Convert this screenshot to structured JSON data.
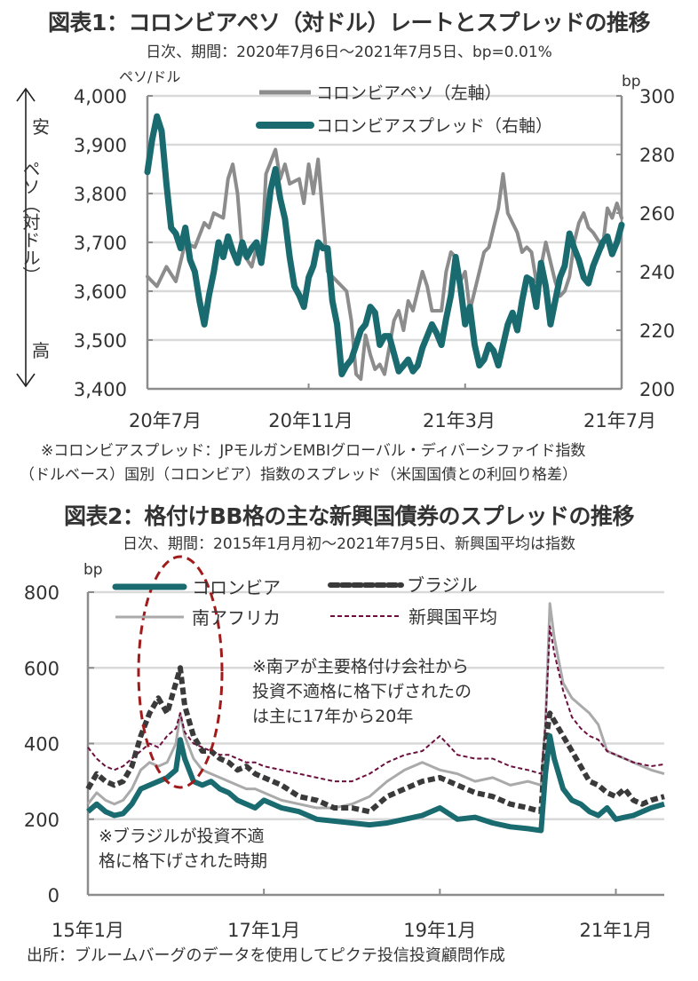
{
  "chart_data": [
    {
      "type": "line",
      "title": "図表1：コロンビアペソ（対ドル）レートとスプレッドの推移",
      "subtitle": "日次、期間：2020年7月6日～2021年7月5日、bp=0.01%",
      "ylabel_left": "ペソ/ドル",
      "ylabel_right": "bp",
      "side_label_top": "安",
      "side_label_mid": "ペソ（対ドル）",
      "side_label_bottom": "高",
      "ylim_left": [
        3400,
        4000
      ],
      "ylim_right": [
        200,
        300
      ],
      "yticks_left": [
        "4,000",
        "3,900",
        "3,800",
        "3,700",
        "3,600",
        "3,500",
        "3,400"
      ],
      "yticks_right": [
        "300",
        "280",
        "260",
        "240",
        "220",
        "200"
      ],
      "xticks": [
        "20年7月",
        "20年11月",
        "21年3月",
        "21年7月"
      ],
      "grid": true,
      "legend_placement": "top-center",
      "x_range": [
        "2020-07-06",
        "2021-07-05"
      ],
      "series": [
        {
          "name": "コロンビアペソ（左軸）",
          "axis": "left",
          "color": "#8c8c8c",
          "x": [
            0,
            0.02,
            0.04,
            0.06,
            0.08,
            0.1,
            0.12,
            0.13,
            0.14,
            0.16,
            0.17,
            0.18,
            0.19,
            0.2,
            0.22,
            0.23,
            0.24,
            0.25,
            0.27,
            0.28,
            0.29,
            0.3,
            0.32,
            0.33,
            0.34,
            0.35,
            0.36,
            0.38,
            0.39,
            0.4,
            0.42,
            0.43,
            0.44,
            0.45,
            0.46,
            0.47,
            0.48,
            0.49,
            0.5,
            0.52,
            0.53,
            0.54,
            0.55,
            0.56,
            0.58,
            0.59,
            0.6,
            0.62,
            0.63,
            0.64,
            0.65,
            0.66,
            0.67,
            0.68,
            0.7,
            0.71,
            0.72,
            0.73,
            0.74,
            0.75,
            0.76,
            0.78,
            0.79,
            0.8,
            0.81,
            0.82,
            0.83,
            0.84,
            0.86,
            0.87,
            0.88,
            0.89,
            0.9,
            0.91,
            0.92,
            0.93,
            0.94,
            0.96,
            0.97,
            0.98,
            0.99,
            1.0
          ],
          "values": [
            3630,
            3610,
            3650,
            3620,
            3700,
            3690,
            3740,
            3730,
            3760,
            3750,
            3830,
            3860,
            3800,
            3680,
            3650,
            3690,
            3660,
            3840,
            3890,
            3830,
            3860,
            3820,
            3830,
            3780,
            3860,
            3800,
            3870,
            3640,
            3630,
            3620,
            3600,
            3540,
            3430,
            3420,
            3510,
            3470,
            3440,
            3450,
            3430,
            3540,
            3560,
            3520,
            3580,
            3560,
            3640,
            3610,
            3560,
            3560,
            3640,
            3680,
            3670,
            3620,
            3640,
            3560,
            3640,
            3680,
            3690,
            3730,
            3770,
            3840,
            3760,
            3720,
            3680,
            3690,
            3680,
            3620,
            3650,
            3700,
            3620,
            3590,
            3600,
            3630,
            3700,
            3740,
            3760,
            3730,
            3720,
            3690,
            3770,
            3750,
            3780,
            3750
          ]
        },
        {
          "name": "コロンビアスプレッド（右軸）",
          "axis": "right",
          "color": "#1a6b70",
          "x": [
            0,
            0.01,
            0.02,
            0.03,
            0.04,
            0.05,
            0.06,
            0.07,
            0.08,
            0.09,
            0.1,
            0.11,
            0.12,
            0.13,
            0.14,
            0.15,
            0.16,
            0.17,
            0.18,
            0.19,
            0.2,
            0.21,
            0.22,
            0.23,
            0.24,
            0.25,
            0.26,
            0.27,
            0.28,
            0.29,
            0.3,
            0.31,
            0.32,
            0.33,
            0.34,
            0.35,
            0.36,
            0.37,
            0.38,
            0.39,
            0.4,
            0.41,
            0.42,
            0.43,
            0.44,
            0.45,
            0.46,
            0.47,
            0.48,
            0.49,
            0.5,
            0.51,
            0.52,
            0.53,
            0.54,
            0.55,
            0.56,
            0.57,
            0.58,
            0.59,
            0.6,
            0.61,
            0.62,
            0.63,
            0.64,
            0.65,
            0.66,
            0.67,
            0.68,
            0.69,
            0.7,
            0.71,
            0.72,
            0.73,
            0.74,
            0.75,
            0.76,
            0.77,
            0.78,
            0.79,
            0.8,
            0.81,
            0.82,
            0.83,
            0.84,
            0.85,
            0.86,
            0.87,
            0.88,
            0.89,
            0.9,
            0.91,
            0.92,
            0.93,
            0.94,
            0.95,
            0.96,
            0.97,
            0.98,
            0.99,
            1.0
          ],
          "values": [
            274,
            285,
            293,
            288,
            270,
            255,
            253,
            248,
            255,
            244,
            240,
            230,
            222,
            232,
            240,
            250,
            245,
            252,
            247,
            243,
            250,
            245,
            248,
            250,
            243,
            255,
            268,
            275,
            265,
            258,
            245,
            235,
            232,
            228,
            238,
            242,
            250,
            248,
            248,
            230,
            222,
            205,
            208,
            210,
            215,
            220,
            222,
            228,
            226,
            215,
            218,
            218,
            212,
            206,
            208,
            210,
            206,
            208,
            214,
            218,
            222,
            219,
            215,
            224,
            232,
            245,
            235,
            222,
            228,
            215,
            208,
            210,
            215,
            213,
            208,
            215,
            222,
            226,
            220,
            230,
            238,
            237,
            228,
            243,
            235,
            222,
            230,
            238,
            242,
            253,
            248,
            244,
            238,
            236,
            242,
            246,
            250,
            252,
            246,
            250,
            256
          ]
        }
      ],
      "footnote": [
        "※コロンビアスプレッド：JPモルガンEMBIグローバル・ディバーシファイド指数",
        "（ドルベース）国別（コロンビア）指数のスプレッド（米国国債との利回り格差）"
      ]
    },
    {
      "type": "line",
      "title": "図表2：格付けBB格の主な新興国債券のスプレッドの推移",
      "subtitle": "日次、期間：2015年1月月初～2021年7月5日、新興国平均は指数",
      "ylabel": "bp",
      "ylim": [
        0,
        800
      ],
      "yticks": [
        "800",
        "600",
        "400",
        "200",
        "0"
      ],
      "xticks": [
        "15年1月",
        "17年1月",
        "19年1月",
        "21年1月"
      ],
      "x_range_years": [
        2015.0,
        2021.55
      ],
      "grid": true,
      "legend_placement": "top-center",
      "series": [
        {
          "name": "コロンビア",
          "style": "solid-thick",
          "color": "#1a6b70",
          "x": [
            2015.0,
            2015.1,
            2015.2,
            2015.3,
            2015.4,
            2015.5,
            2015.6,
            2015.7,
            2015.8,
            2015.9,
            2016.0,
            2016.05,
            2016.1,
            2016.2,
            2016.3,
            2016.4,
            2016.5,
            2016.6,
            2016.7,
            2016.8,
            2016.9,
            2017.0,
            2017.2,
            2017.4,
            2017.6,
            2017.8,
            2018.0,
            2018.2,
            2018.4,
            2018.6,
            2018.8,
            2019.0,
            2019.2,
            2019.4,
            2019.6,
            2019.8,
            2020.0,
            2020.15,
            2020.2,
            2020.25,
            2020.3,
            2020.4,
            2020.5,
            2020.6,
            2020.7,
            2020.8,
            2020.9,
            2021.0,
            2021.1,
            2021.2,
            2021.3,
            2021.4,
            2021.55
          ],
          "values": [
            220,
            240,
            220,
            210,
            215,
            240,
            280,
            290,
            300,
            310,
            330,
            410,
            360,
            300,
            290,
            300,
            280,
            270,
            250,
            240,
            230,
            250,
            230,
            220,
            200,
            195,
            190,
            185,
            190,
            200,
            210,
            230,
            200,
            205,
            190,
            180,
            175,
            170,
            320,
            420,
            360,
            280,
            250,
            240,
            220,
            210,
            230,
            200,
            205,
            210,
            220,
            230,
            240
          ]
        },
        {
          "name": "ブラジル",
          "style": "dashed-thick",
          "color": "#3a3a3a",
          "x": [
            2015.0,
            2015.1,
            2015.2,
            2015.3,
            2015.4,
            2015.5,
            2015.6,
            2015.7,
            2015.8,
            2015.9,
            2016.0,
            2016.05,
            2016.1,
            2016.2,
            2016.3,
            2016.4,
            2016.5,
            2016.6,
            2016.7,
            2016.8,
            2016.9,
            2017.0,
            2017.2,
            2017.4,
            2017.6,
            2017.8,
            2018.0,
            2018.2,
            2018.4,
            2018.6,
            2018.8,
            2019.0,
            2019.2,
            2019.4,
            2019.6,
            2019.8,
            2020.0,
            2020.15,
            2020.2,
            2020.25,
            2020.3,
            2020.4,
            2020.5,
            2020.6,
            2020.7,
            2020.8,
            2020.9,
            2021.0,
            2021.1,
            2021.2,
            2021.3,
            2021.4,
            2021.55
          ],
          "values": [
            280,
            320,
            300,
            290,
            300,
            340,
            420,
            480,
            520,
            480,
            560,
            600,
            500,
            420,
            380,
            380,
            360,
            350,
            330,
            340,
            320,
            310,
            290,
            260,
            250,
            230,
            230,
            220,
            260,
            280,
            300,
            310,
            290,
            270,
            260,
            240,
            230,
            220,
            400,
            480,
            460,
            420,
            380,
            340,
            300,
            290,
            270,
            260,
            280,
            250,
            240,
            250,
            260
          ]
        },
        {
          "name": "南アフリカ",
          "style": "solid-thin",
          "color": "#aaaaaa",
          "x": [
            2015.0,
            2015.1,
            2015.2,
            2015.3,
            2015.4,
            2015.5,
            2015.6,
            2015.7,
            2015.8,
            2015.9,
            2016.0,
            2016.05,
            2016.1,
            2016.2,
            2016.3,
            2016.4,
            2016.5,
            2016.6,
            2016.7,
            2016.8,
            2016.9,
            2017.0,
            2017.2,
            2017.4,
            2017.6,
            2017.8,
            2018.0,
            2018.2,
            2018.4,
            2018.6,
            2018.8,
            2019.0,
            2019.2,
            2019.4,
            2019.6,
            2019.8,
            2020.0,
            2020.15,
            2020.2,
            2020.25,
            2020.3,
            2020.4,
            2020.5,
            2020.6,
            2020.7,
            2020.8,
            2020.9,
            2021.0,
            2021.1,
            2021.2,
            2021.3,
            2021.4,
            2021.55
          ],
          "values": [
            240,
            270,
            250,
            240,
            250,
            280,
            330,
            350,
            340,
            350,
            400,
            480,
            420,
            360,
            330,
            320,
            310,
            300,
            290,
            280,
            280,
            270,
            250,
            240,
            230,
            230,
            240,
            260,
            300,
            330,
            350,
            330,
            320,
            300,
            310,
            290,
            300,
            290,
            450,
            770,
            680,
            560,
            520,
            500,
            480,
            450,
            380,
            370,
            360,
            350,
            340,
            330,
            320
          ]
        },
        {
          "name": "新興国平均",
          "style": "dashed-thin",
          "color": "#6b0f3f",
          "x": [
            2015.0,
            2015.1,
            2015.2,
            2015.3,
            2015.4,
            2015.5,
            2015.6,
            2015.7,
            2015.8,
            2015.9,
            2016.0,
            2016.05,
            2016.1,
            2016.2,
            2016.3,
            2016.4,
            2016.5,
            2016.6,
            2016.7,
            2016.8,
            2016.9,
            2017.0,
            2017.2,
            2017.4,
            2017.6,
            2017.8,
            2018.0,
            2018.2,
            2018.4,
            2018.6,
            2018.8,
            2019.0,
            2019.2,
            2019.4,
            2019.6,
            2019.8,
            2020.0,
            2020.15,
            2020.2,
            2020.25,
            2020.3,
            2020.4,
            2020.5,
            2020.6,
            2020.7,
            2020.8,
            2020.9,
            2021.0,
            2021.1,
            2021.2,
            2021.3,
            2021.4,
            2021.55
          ],
          "values": [
            390,
            360,
            340,
            330,
            340,
            360,
            380,
            400,
            390,
            420,
            440,
            480,
            430,
            400,
            390,
            380,
            370,
            370,
            360,
            350,
            350,
            340,
            330,
            320,
            310,
            300,
            300,
            320,
            350,
            370,
            380,
            420,
            370,
            360,
            360,
            340,
            330,
            320,
            450,
            710,
            640,
            540,
            470,
            440,
            420,
            410,
            380,
            370,
            360,
            350,
            345,
            340,
            345
          ]
        }
      ],
      "annotations": [
        "※南アが主要格付け会社から投資不適格に格下げされたのは主に17年から20年",
        "※ブラジルが投資不適格に格下げされた時期"
      ],
      "highlight_ellipse": {
        "x_center_year": 2015.95,
        "y_center": 420,
        "color": "#a01c1c"
      },
      "source": "出所：ブルームバーグのデータを使用してピクテ投信投資顧問作成"
    }
  ],
  "text": {
    "c1_title": "図表1：コロンビアペソ（対ドル）レートとスプレッドの推移",
    "c1_sub": "日次、期間：2020年7月6日～2021年7月5日、bp=0.01%",
    "c1_yunit_left": "ペソ/ドル",
    "c1_yunit_right": "bp",
    "c1_side_top": "安",
    "c1_side_mid": "ペソ（対ドル）",
    "c1_side_bottom": "高",
    "c1_legend_peso": "コロンビアペソ（左軸）",
    "c1_legend_spread": "コロンビアスプレッド（右軸）",
    "c1_note1": "※コロンビアスプレッド：JPモルガンEMBIグローバル・ディバーシファイド指数",
    "c1_note2": "（ドルベース）国別（コロンビア）指数のスプレッド（米国国債との利回り格差）",
    "c2_title": "図表2：格付けBB格の主な新興国債券のスプレッドの推移",
    "c2_sub": "日次、期間：2015年1月月初～2021年7月5日、新興国平均は指数",
    "c2_yunit": "bp",
    "c2_legend_col": "コロンビア",
    "c2_legend_bra": "ブラジル",
    "c2_legend_za": "南アフリカ",
    "c2_legend_em": "新興国平均",
    "c2_anno_za": [
      "※南アが主要格付け会社から",
      "投資不適格に格下げされたの",
      "は主に17年から20年"
    ],
    "c2_anno_bra": [
      "※ブラジルが投資不適",
      "格に格下げされた時期"
    ],
    "source": "出所：ブルームバーグのデータを使用してピクテ投信投資顧問作成"
  }
}
